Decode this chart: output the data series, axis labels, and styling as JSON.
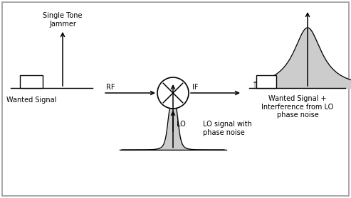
{
  "fig_bg": "#ffffff",
  "border_color": "#999999",
  "panels": {
    "left_label_top": "Single Tone\nJammer",
    "left_label_bottom": "Wanted Signal",
    "center_label_rf": "RF",
    "center_label_if": "IF",
    "center_label_lo": "LO",
    "right_label": "Wanted Signal +\nInterference from LO\nphase noise",
    "bottom_label": "LO signal with\nphase noise"
  },
  "colors": {
    "gray_fill": "#cccccc",
    "black": "#000000",
    "white": "#ffffff"
  }
}
